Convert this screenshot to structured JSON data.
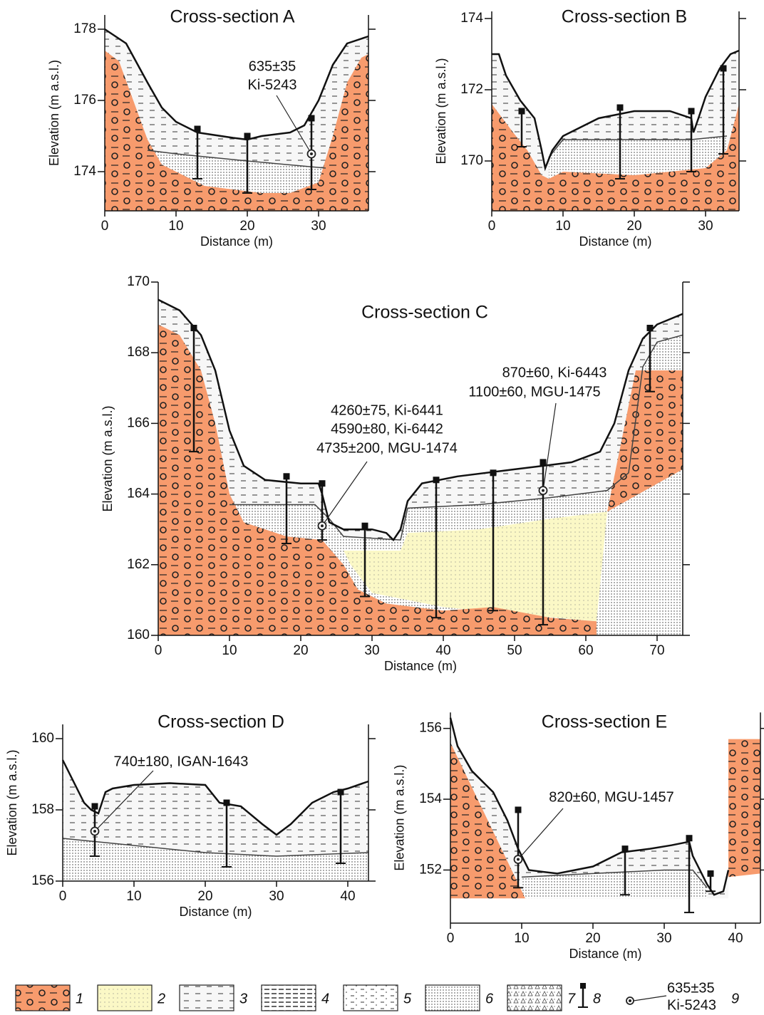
{
  "chart_data": [
    {
      "type": "cross-section",
      "title": "Cross-section A",
      "xlabel": "Distance (m)",
      "ylabel": "Elevation (m a.s.l.)",
      "xlim": [
        0,
        37
      ],
      "ylim": [
        172.9,
        178.4
      ],
      "xticks": [
        0,
        10,
        20,
        30
      ],
      "yticks": [
        174,
        176,
        178
      ],
      "boreholes": {
        "x": [
          13,
          20,
          29
        ],
        "top": [
          175.2,
          175,
          175.5
        ],
        "bottom": [
          173.8,
          173.4,
          173.5
        ]
      },
      "dates": [
        {
          "x": 29,
          "y": 174.5,
          "labels": [
            "635±35",
            "Ki-5243"
          ]
        }
      ]
    },
    {
      "type": "cross-section",
      "title": "Cross-section B",
      "xlabel": "Distance (m)",
      "ylabel": "Elevation (m a.s.l.)",
      "xlim": [
        0,
        34.7
      ],
      "ylim": [
        168.6,
        174.2
      ],
      "xticks": [
        0,
        10,
        20,
        30
      ],
      "yticks": [
        170,
        172,
        174
      ],
      "boreholes": {
        "x": [
          4.2,
          18,
          28,
          32.5
        ],
        "top": [
          171.4,
          171.5,
          171.4,
          172.6
        ],
        "bottom": [
          170.4,
          169.5,
          169.7,
          170.2
        ]
      },
      "dates": []
    },
    {
      "type": "cross-section",
      "title": "Cross-section C",
      "xlabel": "Distance (m)",
      "ylabel": "Elevation (m a.s.l.)",
      "xlim": [
        0,
        73.6
      ],
      "ylim": [
        160,
        170
      ],
      "xticks": [
        0,
        10,
        20,
        30,
        40,
        50,
        60,
        70
      ],
      "yticks": [
        160,
        162,
        164,
        166,
        168,
        170
      ],
      "boreholes": {
        "x": [
          5,
          18,
          23,
          29,
          39,
          47,
          54,
          69
        ],
        "top": [
          168.7,
          164.5,
          164.3,
          163.1,
          164.4,
          164.6,
          164.9,
          168.7
        ],
        "bottom": [
          165.2,
          162.6,
          162.7,
          161.1,
          160.5,
          160.7,
          160.3,
          166.9
        ]
      },
      "dates": [
        {
          "x": 23,
          "y": 163.1,
          "labels": [
            "4260±75, Ki-6441",
            "4590±80, Ki-6442",
            "4735±200, MGU-1474"
          ]
        },
        {
          "x": 54,
          "y": 164.1,
          "labels": [
            "870±60, Ki-6443",
            "1100±60, MGU-1475"
          ]
        }
      ]
    },
    {
      "type": "cross-section",
      "title": "Cross-section D",
      "xlabel": "Distance (m)",
      "ylabel": "Elevation (m a.s.l.)",
      "xlim": [
        0,
        42.9
      ],
      "ylim": [
        156,
        160.4
      ],
      "xticks": [
        0,
        10,
        20,
        30,
        40
      ],
      "yticks": [
        156,
        158,
        160
      ],
      "boreholes": {
        "x": [
          4.5,
          23,
          39
        ],
        "top": [
          158.1,
          158.2,
          158.5
        ],
        "bottom": [
          156.7,
          156.4,
          156.5
        ]
      },
      "dates": [
        {
          "x": 4.5,
          "y": 157.4,
          "labels": [
            "740±180, IGAN-1643"
          ]
        }
      ]
    },
    {
      "type": "cross-section",
      "title": "Cross-section E",
      "xlabel": "Distance (m)",
      "ylabel": "Elevation (m a.s.l.)",
      "xlim": [
        0,
        43.5
      ],
      "ylim": [
        150.5,
        156.45
      ],
      "xticks": [
        0,
        10,
        20,
        30,
        40
      ],
      "yticks": [
        152,
        154,
        156
      ],
      "boreholes": {
        "x": [
          9.5,
          24.5,
          33.5,
          36.5
        ],
        "top": [
          153.7,
          152.6,
          152.9,
          151.9
        ],
        "bottom": [
          151.5,
          151.3,
          150.8,
          151.4
        ]
      },
      "dates": [
        {
          "x": 9.5,
          "y": 152.3,
          "labels": [
            "820±60, MGU-1457"
          ]
        }
      ]
    }
  ],
  "legend": {
    "items": [
      "1",
      "2",
      "3",
      "4",
      "5",
      "6",
      "7",
      "8",
      "9"
    ],
    "sample": [
      "635±35",
      "Ki-5243"
    ]
  }
}
